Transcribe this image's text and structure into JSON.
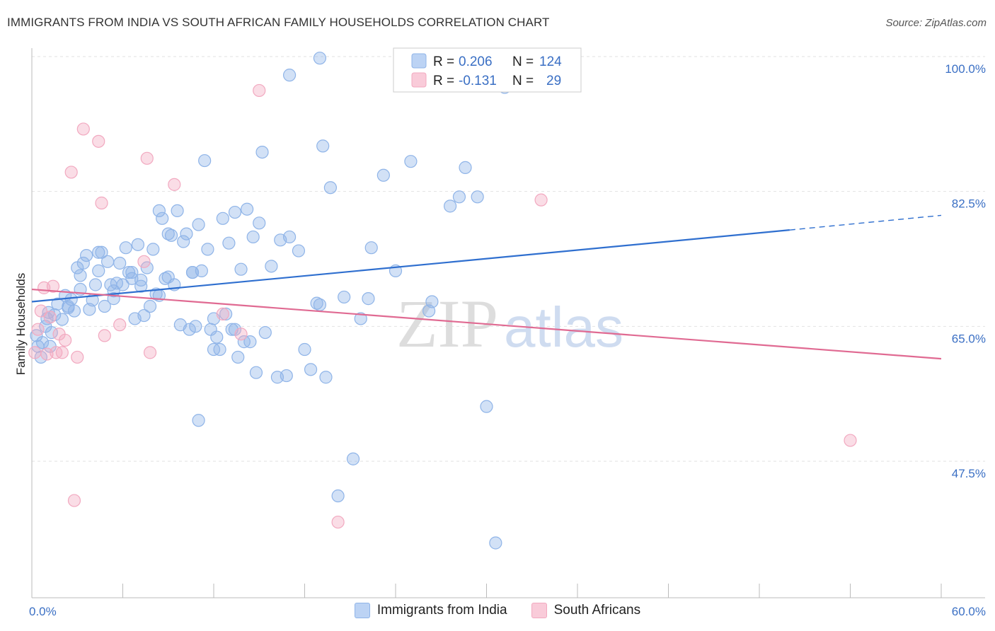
{
  "header": {
    "title": "IMMIGRANTS FROM INDIA VS SOUTH AFRICAN FAMILY HOUSEHOLDS CORRELATION CHART",
    "source": "Source: ZipAtlas.com"
  },
  "watermark": {
    "zip": "ZIP",
    "atlas": "atlas"
  },
  "chart_data": {
    "type": "scatter",
    "ylabel": "Family Households",
    "xlim": [
      0,
      60
    ],
    "ylim": [
      32,
      100
    ],
    "x_tick_labels": [
      {
        "value": 0,
        "label": "0.0%"
      },
      {
        "value": 60,
        "label": "60.0%"
      }
    ],
    "y_tick_labels": [
      {
        "value": 100,
        "label": "100.0%"
      },
      {
        "value": 82.5,
        "label": "82.5%"
      },
      {
        "value": 65,
        "label": "65.0%"
      },
      {
        "value": 47.5,
        "label": "47.5%"
      }
    ],
    "grid": "horizontal dashed",
    "legend": {
      "placement": "top-center",
      "rows": [
        {
          "r_label": "R =",
          "r_value": "0.206",
          "n_label": "N =",
          "n_value": "124"
        },
        {
          "r_label": "R =",
          "r_value": "-0.131",
          "n_label": "N =",
          "n_value": "29"
        }
      ]
    },
    "series": [
      {
        "name": "Immigrants from India",
        "color": "#8fb4e8",
        "line_color": "#2f6fcf",
        "trend": {
          "x0": 0,
          "y0": 68.2,
          "x1": 50,
          "y1": 77.5,
          "dash_to_x": 60,
          "dash_to_y": 79.4
        },
        "points": [
          [
            0.3,
            63.8
          ],
          [
            0.4,
            62.4
          ],
          [
            0.6,
            61.0
          ],
          [
            0.7,
            62.9
          ],
          [
            0.9,
            65.0
          ],
          [
            1.0,
            66.0
          ],
          [
            1.1,
            66.8
          ],
          [
            1.3,
            64.2
          ],
          [
            1.5,
            66.5
          ],
          [
            1.7,
            67.9
          ],
          [
            2.0,
            65.9
          ],
          [
            2.2,
            69.0
          ],
          [
            2.4,
            67.4
          ],
          [
            2.6,
            68.5
          ],
          [
            2.8,
            67.0
          ],
          [
            3.0,
            72.6
          ],
          [
            3.2,
            71.6
          ],
          [
            3.4,
            73.2
          ],
          [
            3.6,
            74.2
          ],
          [
            3.8,
            67.2
          ],
          [
            4.0,
            68.4
          ],
          [
            4.2,
            70.4
          ],
          [
            4.4,
            72.2
          ],
          [
            4.6,
            74.6
          ],
          [
            4.8,
            67.6
          ],
          [
            5.0,
            73.4
          ],
          [
            5.2,
            70.4
          ],
          [
            5.4,
            69.6
          ],
          [
            5.6,
            70.6
          ],
          [
            5.8,
            73.2
          ],
          [
            6.2,
            75.2
          ],
          [
            6.4,
            72.0
          ],
          [
            6.6,
            71.2
          ],
          [
            6.8,
            66.0
          ],
          [
            7.0,
            75.6
          ],
          [
            7.2,
            70.2
          ],
          [
            7.4,
            66.4
          ],
          [
            7.6,
            72.6
          ],
          [
            7.8,
            67.6
          ],
          [
            8.0,
            75.0
          ],
          [
            8.2,
            69.2
          ],
          [
            8.4,
            80.0
          ],
          [
            8.6,
            79.0
          ],
          [
            8.8,
            71.2
          ],
          [
            9.0,
            77.0
          ],
          [
            9.2,
            76.8
          ],
          [
            9.4,
            70.4
          ],
          [
            9.6,
            80.0
          ],
          [
            9.8,
            65.2
          ],
          [
            10.0,
            76.0
          ],
          [
            10.2,
            77.0
          ],
          [
            10.4,
            64.6
          ],
          [
            10.6,
            72.0
          ],
          [
            10.8,
            65.0
          ],
          [
            11.0,
            78.2
          ],
          [
            11.2,
            72.2
          ],
          [
            11.4,
            86.5
          ],
          [
            11.6,
            75.0
          ],
          [
            11.8,
            64.6
          ],
          [
            12.0,
            62.0
          ],
          [
            12.2,
            63.6
          ],
          [
            12.4,
            62.0
          ],
          [
            12.6,
            79.0
          ],
          [
            12.8,
            66.6
          ],
          [
            13.0,
            75.8
          ],
          [
            13.2,
            64.6
          ],
          [
            13.4,
            79.8
          ],
          [
            13.6,
            61.0
          ],
          [
            13.8,
            72.4
          ],
          [
            14.0,
            63.0
          ],
          [
            14.2,
            80.2
          ],
          [
            14.6,
            76.6
          ],
          [
            14.8,
            59.0
          ],
          [
            15.0,
            78.4
          ],
          [
            15.2,
            87.6
          ],
          [
            15.8,
            72.8
          ],
          [
            16.2,
            58.4
          ],
          [
            16.4,
            76.2
          ],
          [
            16.8,
            58.6
          ],
          [
            17.0,
            76.6
          ],
          [
            17.6,
            74.8
          ],
          [
            18.0,
            62.0
          ],
          [
            18.4,
            59.4
          ],
          [
            18.8,
            68.0
          ],
          [
            19.0,
            67.8
          ],
          [
            19.2,
            88.4
          ],
          [
            19.4,
            58.4
          ],
          [
            19.7,
            83.0
          ],
          [
            20.2,
            43.0
          ],
          [
            20.6,
            68.8
          ],
          [
            21.2,
            47.8
          ],
          [
            21.7,
            66.0
          ],
          [
            22.2,
            68.6
          ],
          [
            22.4,
            75.2
          ],
          [
            23.2,
            84.6
          ],
          [
            24.0,
            72.2
          ],
          [
            25.0,
            86.4
          ],
          [
            26.2,
            67.0
          ],
          [
            26.4,
            68.2
          ],
          [
            27.6,
            80.6
          ],
          [
            28.2,
            81.8
          ],
          [
            28.6,
            85.6
          ],
          [
            29.4,
            81.8
          ],
          [
            30.0,
            54.6
          ],
          [
            31.2,
            96.0
          ],
          [
            17.0,
            97.6
          ],
          [
            30.6,
            36.9
          ],
          [
            11.0,
            52.8
          ],
          [
            19.0,
            99.8
          ],
          [
            1.2,
            62.4
          ],
          [
            2.4,
            67.6
          ],
          [
            3.2,
            69.8
          ],
          [
            4.4,
            74.6
          ],
          [
            5.4,
            68.6
          ],
          [
            6.0,
            70.4
          ],
          [
            6.6,
            72.0
          ],
          [
            7.2,
            71.0
          ],
          [
            8.4,
            69.0
          ],
          [
            9.0,
            71.4
          ],
          [
            10.6,
            72.0
          ],
          [
            12.0,
            66.0
          ],
          [
            13.4,
            64.6
          ],
          [
            14.4,
            63.0
          ],
          [
            15.4,
            64.2
          ]
        ]
      },
      {
        "name": "South Africans",
        "color": "#f2a9c0",
        "line_color": "#e06a92",
        "trend": {
          "x0": 0,
          "y0": 69.8,
          "x1": 60,
          "y1": 60.8
        },
        "points": [
          [
            0.2,
            61.6
          ],
          [
            0.4,
            64.6
          ],
          [
            0.6,
            67.0
          ],
          [
            0.8,
            70.0
          ],
          [
            1.0,
            61.4
          ],
          [
            1.2,
            66.2
          ],
          [
            1.4,
            70.2
          ],
          [
            1.6,
            61.6
          ],
          [
            1.8,
            64.0
          ],
          [
            2.0,
            61.6
          ],
          [
            2.2,
            63.2
          ],
          [
            2.6,
            85.0
          ],
          [
            2.8,
            42.4
          ],
          [
            3.0,
            61.0
          ],
          [
            3.4,
            90.6
          ],
          [
            4.4,
            89.0
          ],
          [
            4.6,
            81.0
          ],
          [
            4.8,
            63.8
          ],
          [
            5.8,
            65.2
          ],
          [
            7.6,
            86.8
          ],
          [
            7.4,
            73.4
          ],
          [
            7.8,
            61.6
          ],
          [
            9.4,
            83.4
          ],
          [
            12.6,
            66.6
          ],
          [
            13.8,
            64.0
          ],
          [
            15.0,
            95.6
          ],
          [
            20.2,
            39.6
          ],
          [
            33.6,
            81.4
          ],
          [
            54.0,
            50.2
          ]
        ]
      }
    ]
  }
}
